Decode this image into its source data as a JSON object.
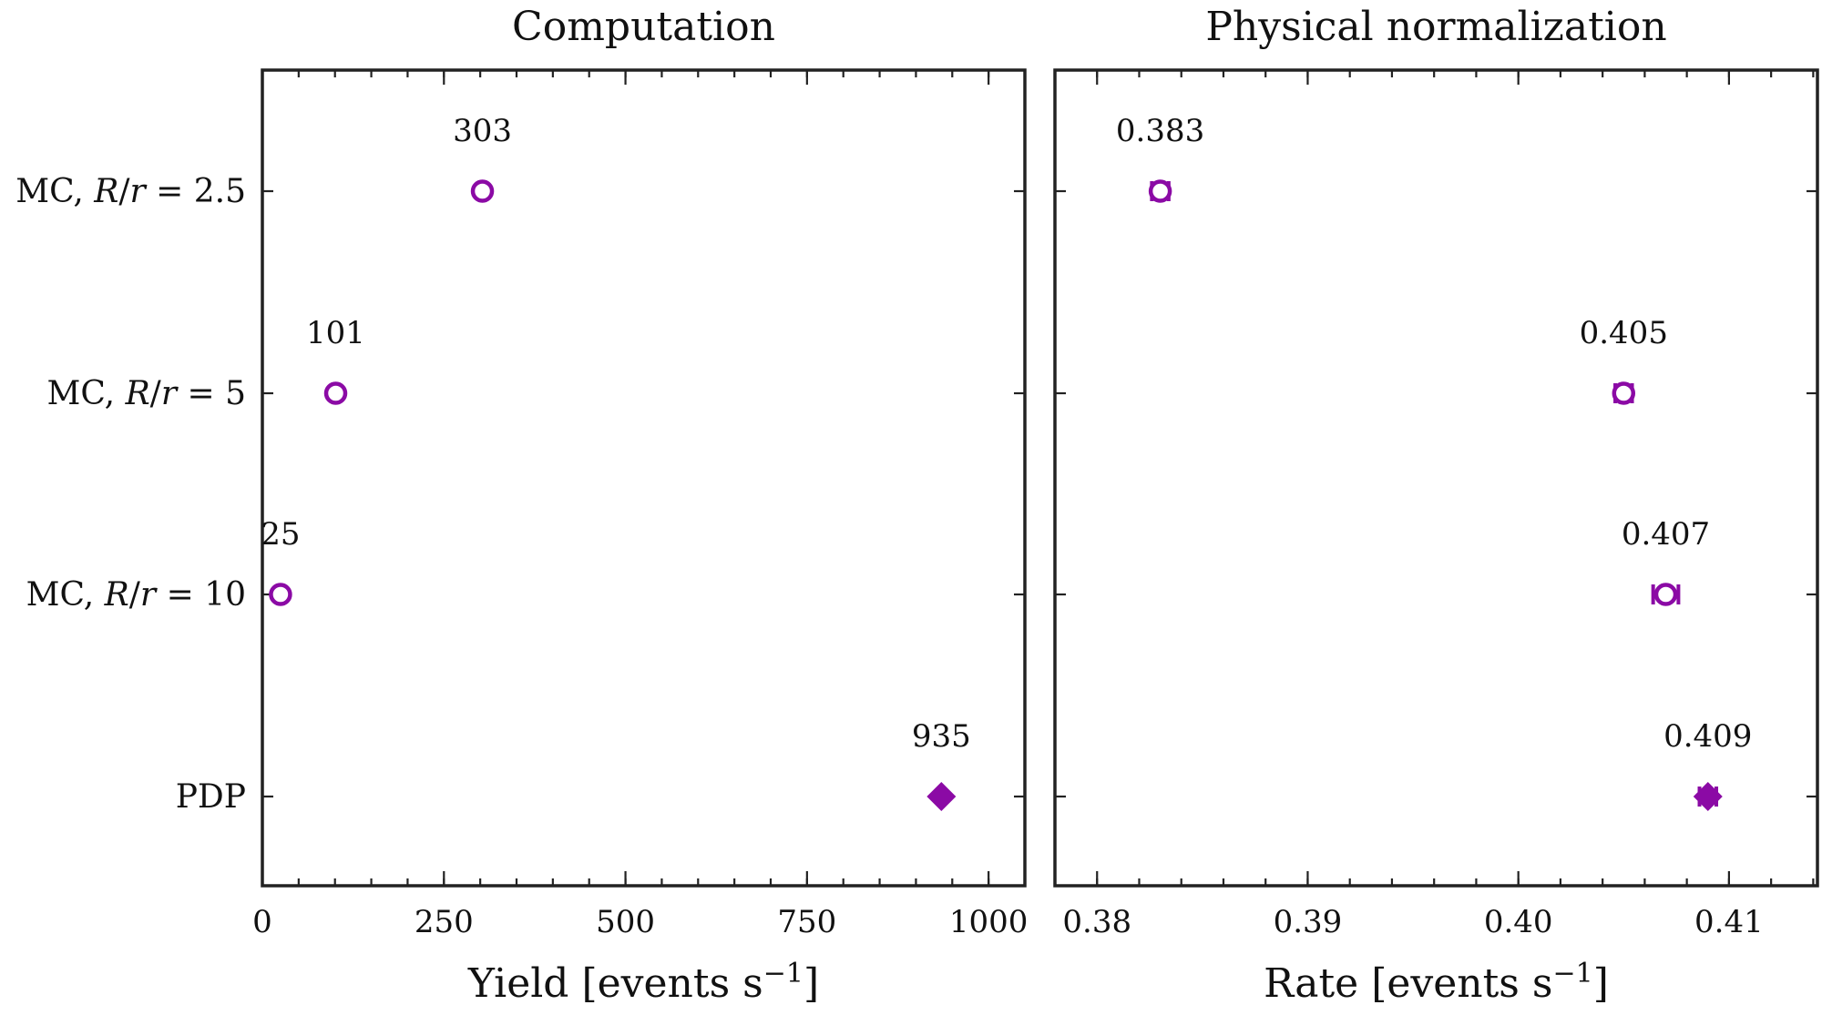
{
  "chart_data": [
    {
      "type": "scatter",
      "title": "Computation",
      "xlabel": "Yield [events s",
      "xlabel_sup": "−1",
      "xlabel_close": "]",
      "xlim": [
        0,
        1050
      ],
      "xticks": [
        0,
        250,
        500,
        750,
        1000
      ],
      "xtick_labels": [
        "0",
        "250",
        "500",
        "750",
        "1000"
      ],
      "categories": [
        "MC, R/r = 2.5",
        "MC, R/r = 5",
        "MC, R/r = 10",
        "PDP"
      ],
      "category_parts": [
        {
          "pre": "MC, ",
          "it1": "R",
          "mid": "/",
          "it2": "r",
          "post": " = 2.5"
        },
        {
          "pre": "MC, ",
          "it1": "R",
          "mid": "/",
          "it2": "r",
          "post": " = 5"
        },
        {
          "pre": "MC, ",
          "it1": "R",
          "mid": "/",
          "it2": "r",
          "post": " = 10"
        },
        {
          "pre": "PDP",
          "it1": "",
          "mid": "",
          "it2": "",
          "post": ""
        }
      ],
      "values": [
        303,
        101,
        25,
        935
      ],
      "data_labels": [
        "303",
        "101",
        "25",
        "935"
      ],
      "errors": [
        0,
        0,
        0,
        0
      ],
      "markers": [
        "circle",
        "circle",
        "circle",
        "diamond"
      ]
    },
    {
      "type": "scatter",
      "title": "Physical normalization",
      "xlabel": "Rate [events s",
      "xlabel_sup": "−1",
      "xlabel_close": "]",
      "xlim": [
        0.378,
        0.4142
      ],
      "xticks": [
        0.38,
        0.39,
        0.4,
        0.41
      ],
      "xtick_labels": [
        "0.38",
        "0.39",
        "0.40",
        "0.41"
      ],
      "categories": [
        "MC, R/r = 2.5",
        "MC, R/r = 5",
        "MC, R/r = 10",
        "PDP"
      ],
      "values": [
        0.383,
        0.405,
        0.407,
        0.409
      ],
      "data_labels": [
        "0.383",
        "0.405",
        "0.407",
        "0.409"
      ],
      "errors": [
        0.0004,
        0.0004,
        0.0006,
        0.0004
      ],
      "markers": [
        "circle",
        "circle",
        "circle",
        "diamond"
      ]
    }
  ],
  "colors": {
    "marker": "#8B0AA5",
    "axis": "#222222"
  }
}
